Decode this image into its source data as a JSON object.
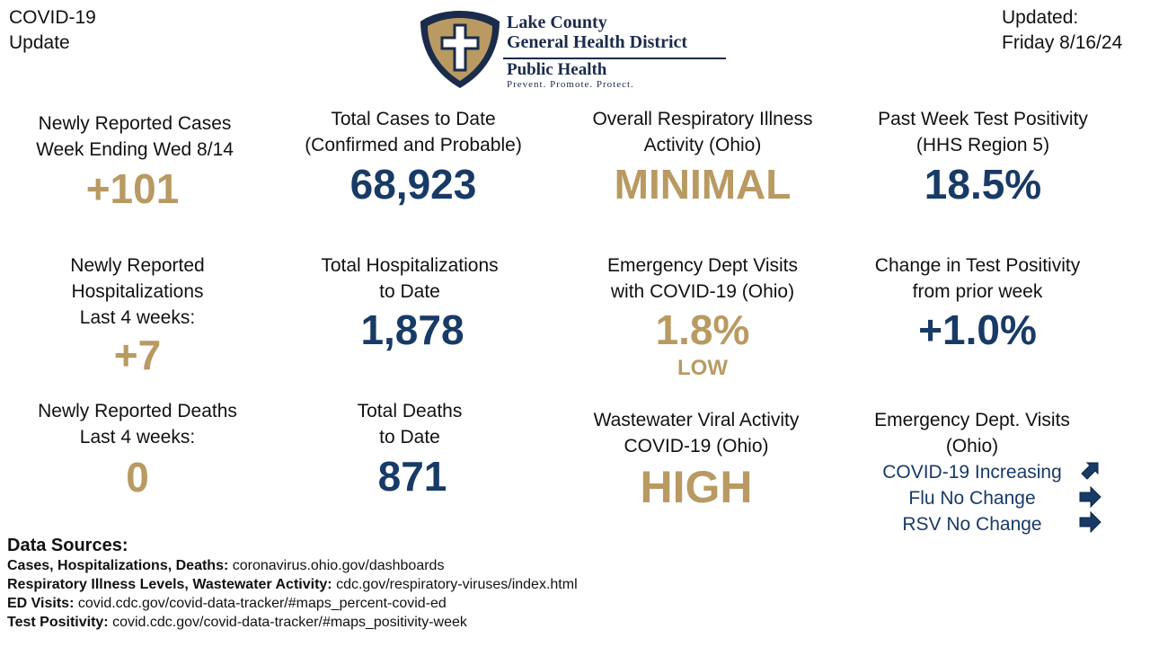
{
  "header": {
    "left_title": "COVID-19\n  Update",
    "updated": "Updated:\nFriday 8/16/24",
    "logo": {
      "name_line1": "Lake County",
      "name_line2": "General Health District",
      "tagline": "Public Health",
      "motto": "Prevent. Promote. Protect."
    }
  },
  "tiles": {
    "new_cases": {
      "label": "Newly Reported Cases\nWeek Ending Wed 8/14",
      "value": "+101"
    },
    "total_cases": {
      "label": "Total Cases to Date\n(Confirmed and Probable)",
      "value": "68,923"
    },
    "resp_activity": {
      "label": "Overall Respiratory Illness\nActivity (Ohio)",
      "value": "MINIMAL"
    },
    "test_positivity": {
      "label": "Past Week Test Positivity\n(HHS Region 5)",
      "value": "18.5%"
    },
    "new_hosp": {
      "label": "Newly Reported\nHospitalizations\nLast 4 weeks:",
      "value": "+7"
    },
    "total_hosp": {
      "label": "Total Hospitalizations\nto Date",
      "value": "1,878"
    },
    "ed_visits": {
      "label": "Emergency Dept Visits\nwith COVID-19 (Ohio)",
      "value": "1.8%",
      "level": "LOW"
    },
    "positivity_change": {
      "label": "Change in Test Positivity\nfrom prior week",
      "value": "+1.0%"
    },
    "new_deaths": {
      "label": "Newly Reported Deaths\nLast 4 weeks:",
      "value": "0"
    },
    "total_deaths": {
      "label": "Total Deaths\nto Date",
      "value": "871"
    },
    "wastewater": {
      "label": "Wastewater Viral Activity\nCOVID-19 (Ohio)",
      "value": "HIGH"
    },
    "ed_trends": {
      "label": "Emergency Dept. Visits\n(Ohio)",
      "items": [
        {
          "text": "COVID-19 Increasing",
          "arrow": "arrow-up-right-icon"
        },
        {
          "text": "Flu No Change",
          "arrow": "arrow-right-icon"
        },
        {
          "text": "RSV No Change",
          "arrow": "arrow-right-icon"
        }
      ]
    }
  },
  "sources": {
    "title": "Data Sources:",
    "lines": [
      {
        "label": "Cases, Hospitalizations, Deaths:",
        "value": "coronavirus.ohio.gov/dashboards"
      },
      {
        "label": "Respiratory Illness Levels, Wastewater Activity:",
        "value": "cdc.gov/respiratory-viruses/index.html"
      },
      {
        "label": "ED Visits:",
        "value": "covid.cdc.gov/covid-data-tracker/#maps_percent-covid-ed"
      },
      {
        "label": "Test Positivity:",
        "value": "covid.cdc.gov/covid-data-tracker/#maps_positivity-week"
      }
    ]
  },
  "colors": {
    "gold": "#b89a62",
    "navy": "#183a66",
    "logo_dark": "#1b2b4b"
  }
}
